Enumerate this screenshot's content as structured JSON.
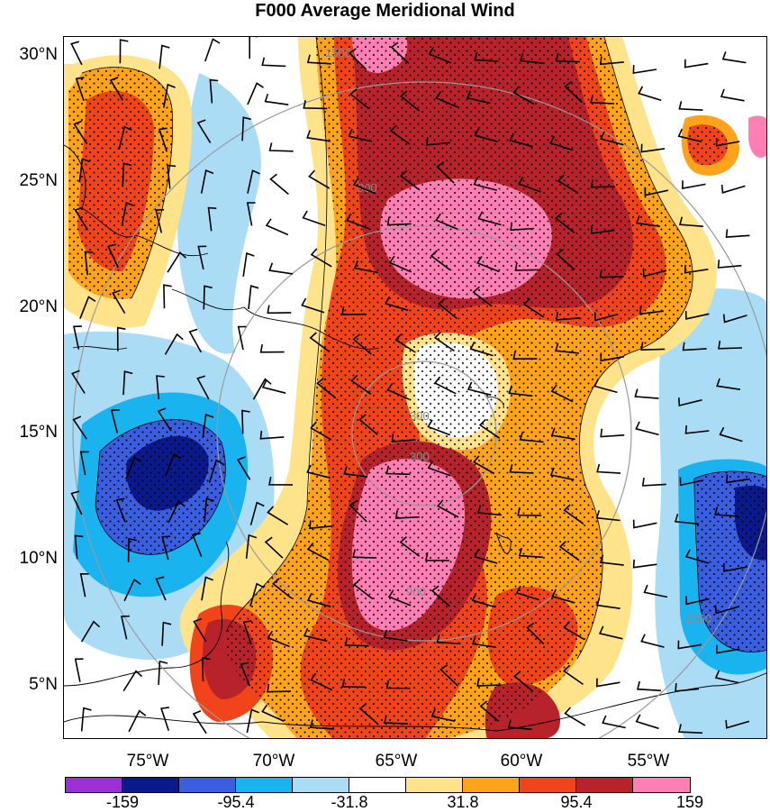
{
  "title": "F000 Average Meridional Wind",
  "latitude_labels": [
    "30°N",
    "25°N",
    "20°N",
    "15°N",
    "10°N",
    "5°N"
  ],
  "longitude_labels": [
    "75°W",
    "70°W",
    "65°W",
    "60°W",
    "55°W"
  ],
  "range_ring_labels": [
    "300",
    "900",
    "1500"
  ],
  "colorbar": {
    "colors": [
      "#9d2fd6",
      "#0a1a8c",
      "#3a5ee0",
      "#19b3f0",
      "#aadcf5",
      "#ffffff",
      "#ffe38a",
      "#ffa31a",
      "#f2441a",
      "#b8232b",
      "#ff7fb5"
    ],
    "labels": [
      "-159",
      "-95.4",
      "-31.8",
      "31.8",
      "95.4",
      "159"
    ]
  },
  "chart_data": {
    "type": "heatmap",
    "title": "F000 Average Meridional Wind",
    "lat_ticks": [
      "30°N",
      "25°N",
      "20°N",
      "15°N",
      "10°N",
      "5°N"
    ],
    "lon_ticks": [
      "75°W",
      "70°W",
      "65°W",
      "60°W",
      "55°W"
    ],
    "range_rings": [
      300,
      900,
      1500
    ],
    "contour_levels": [
      -159,
      -95.4,
      -31.8,
      31.8,
      95.4,
      159
    ],
    "overlays": [
      "wind barbs",
      "coastlines",
      "stippling (significance)"
    ]
  }
}
